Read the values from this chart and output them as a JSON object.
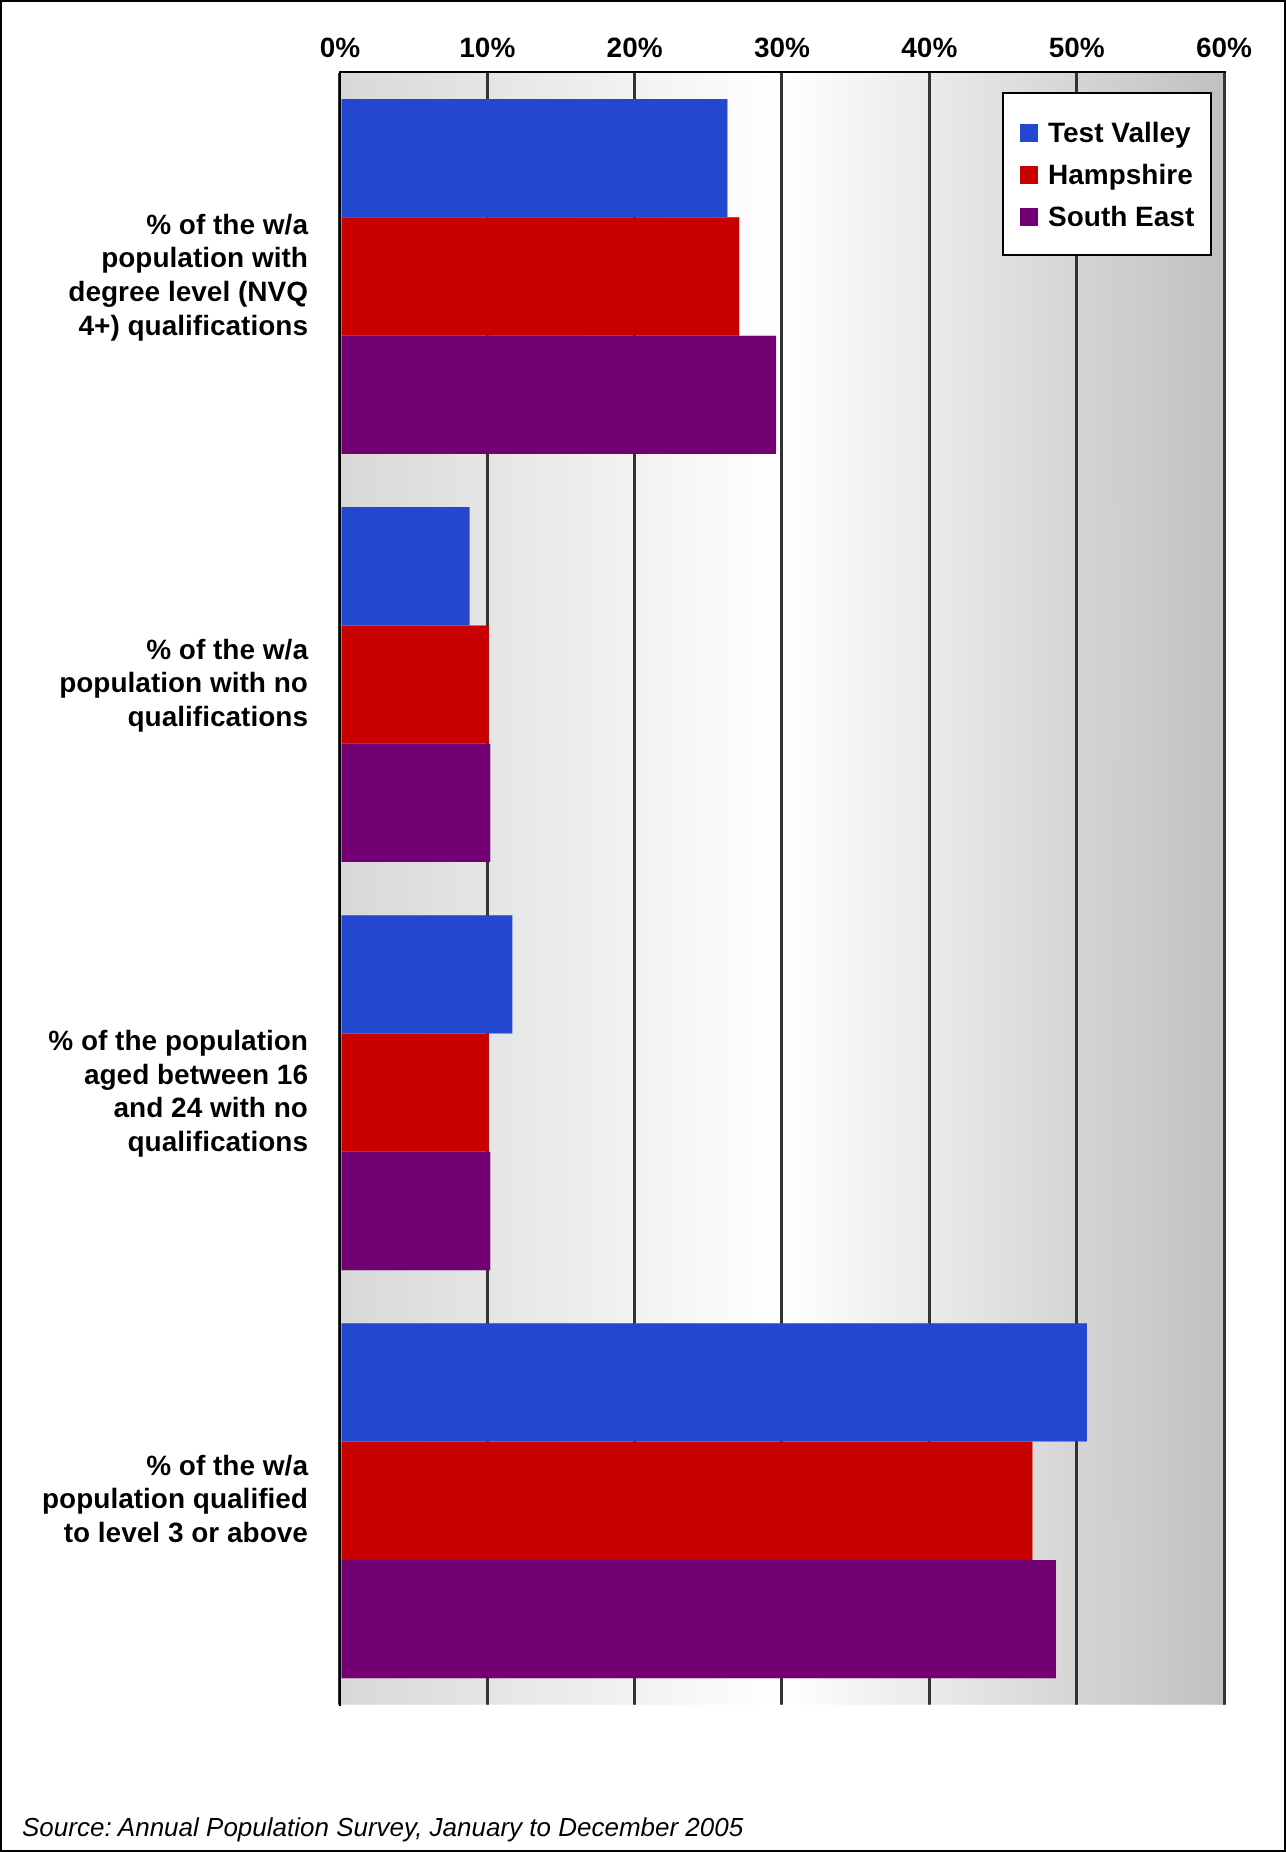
{
  "chart_data": {
    "type": "bar",
    "orientation": "horizontal",
    "categories": [
      "% of the w/a population with degree level (NVQ 4+) qualifications",
      "% of the w/a population with no qualifications",
      "% of the population aged between 16 and 24 with no qualifications",
      "% of the w/a population qualified to level 3 or above"
    ],
    "series": [
      {
        "name": "Test Valley",
        "color": "#2447d0",
        "values": [
          26.3,
          8.8,
          11.7,
          50.7
        ]
      },
      {
        "name": "Hampshire",
        "color": "#c80000",
        "values": [
          27.1,
          10.1,
          10.1,
          47.0
        ]
      },
      {
        "name": "South East",
        "color": "#720072",
        "values": [
          29.6,
          10.2,
          10.2,
          48.6
        ]
      }
    ],
    "xlim": [
      0,
      60
    ],
    "xticks": [
      {
        "value": 0,
        "label": "0%"
      },
      {
        "value": 10,
        "label": "10%"
      },
      {
        "value": 20,
        "label": "20%"
      },
      {
        "value": 30,
        "label": "30%"
      },
      {
        "value": 40,
        "label": "40%"
      },
      {
        "value": 50,
        "label": "50%"
      },
      {
        "value": 60,
        "label": "60%"
      }
    ],
    "grid": "x",
    "legend": "top right",
    "annotations": [
      "Source: Annual Population Survey, January to December 2005"
    ]
  }
}
